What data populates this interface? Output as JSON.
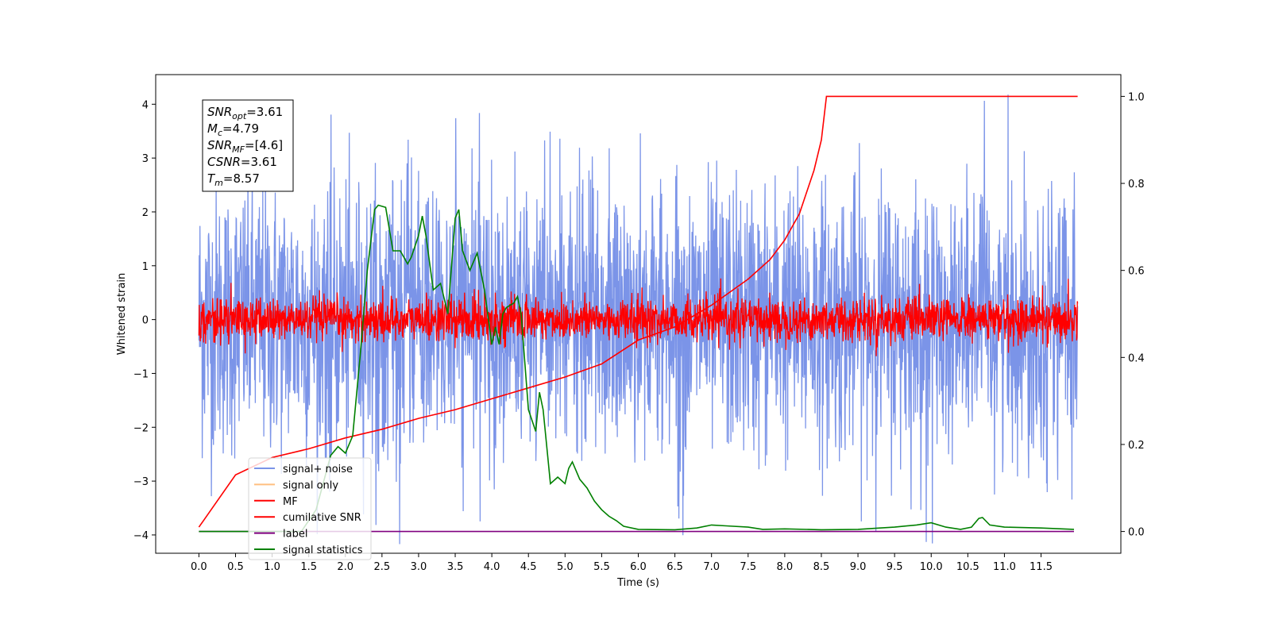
{
  "chart_data": {
    "type": "line",
    "xlabel": "Time (s)",
    "ylabel": "Whitened strain",
    "xlim": [
      -0.59,
      12.59
    ],
    "ylim": [
      -4.34,
      4.55
    ],
    "y2lim": [
      -0.05,
      1.05
    ],
    "xticks": [
      "0.0",
      "0.5",
      "1.0",
      "1.5",
      "2.0",
      "2.5",
      "3.0",
      "3.5",
      "4.0",
      "4.5",
      "5.0",
      "5.5",
      "6.0",
      "6.5",
      "7.0",
      "7.5",
      "8.0",
      "8.5",
      "9.0",
      "9.5",
      "10.0",
      "10.5",
      "11.0",
      "11.5"
    ],
    "yticks": [
      "−4",
      "−3",
      "−2",
      "−1",
      "0",
      "1",
      "2",
      "3",
      "4"
    ],
    "y2ticks": [
      "0.0",
      "0.2",
      "0.4",
      "0.6",
      "0.8",
      "1.0"
    ],
    "grid": false,
    "legend_position": "lower-left",
    "annotation": [
      {
        "base": "SNR",
        "sub": "opt",
        "value": "=3.61"
      },
      {
        "base": "M",
        "sub": "c",
        "value": "=4.79"
      },
      {
        "base": "SNR",
        "sub": "MF",
        "value": "=[4.6]"
      },
      {
        "base": "CSNR",
        "sub": "",
        "value": "=3.61"
      },
      {
        "base": "T",
        "sub": "m",
        "value": "=8.57"
      }
    ],
    "series": [
      {
        "name": "signal+ noise",
        "color": "#7b94e8",
        "axis": "left",
        "kind": "noise",
        "x_range": [
          0.0,
          12.0
        ],
        "amplitude_sd": 1.25,
        "peak_abs": 4.2
      },
      {
        "name": "signal only",
        "color": "#ffbf80",
        "axis": "left",
        "kind": "flat",
        "values": [
          0.0
        ]
      },
      {
        "name": "MF",
        "color": "#ff0000",
        "axis": "left",
        "kind": "noise",
        "x_range": [
          0.0,
          12.0
        ],
        "amplitude_sd": 0.2,
        "peak_abs": 0.85
      },
      {
        "name": "cumilative SNR",
        "color": "#ff0000",
        "axis": "right",
        "kind": "line",
        "x": [
          0.0,
          0.5,
          1.0,
          1.5,
          2.0,
          2.5,
          3.0,
          3.5,
          4.0,
          4.5,
          5.0,
          5.5,
          6.0,
          6.5,
          7.0,
          7.5,
          7.8,
          8.0,
          8.2,
          8.4,
          8.5,
          8.57,
          8.6,
          12.0
        ],
        "values": [
          0.01,
          0.13,
          0.17,
          0.19,
          0.215,
          0.235,
          0.26,
          0.28,
          0.305,
          0.33,
          0.355,
          0.385,
          0.44,
          0.47,
          0.52,
          0.58,
          0.625,
          0.67,
          0.73,
          0.83,
          0.9,
          1.0,
          1.0,
          1.0
        ]
      },
      {
        "name": "label",
        "color": "#800080",
        "axis": "right",
        "kind": "line",
        "x": [
          0.0,
          11.95
        ],
        "values": [
          0.0,
          0.0
        ]
      },
      {
        "name": "signal statistics",
        "color": "#008000",
        "axis": "right",
        "kind": "line",
        "x": [
          0.0,
          0.5,
          1.0,
          1.4,
          1.6,
          1.8,
          1.9,
          2.0,
          2.1,
          2.2,
          2.3,
          2.4,
          2.45,
          2.55,
          2.65,
          2.75,
          2.85,
          2.9,
          3.0,
          3.05,
          3.1,
          3.2,
          3.3,
          3.4,
          3.5,
          3.55,
          3.6,
          3.7,
          3.8,
          3.9,
          4.0,
          4.05,
          4.1,
          4.15,
          4.2,
          4.3,
          4.35,
          4.4,
          4.5,
          4.6,
          4.65,
          4.7,
          4.8,
          4.9,
          5.0,
          5.05,
          5.1,
          5.2,
          5.3,
          5.4,
          5.5,
          5.6,
          5.7,
          5.8,
          6.0,
          6.5,
          6.8,
          7.0,
          7.2,
          7.5,
          7.7,
          8.0,
          8.5,
          9.0,
          9.3,
          9.5,
          9.8,
          10.0,
          10.2,
          10.4,
          10.55,
          10.65,
          10.7,
          10.8,
          11.0,
          11.5,
          11.95
        ],
        "values": [
          0.0,
          0.0,
          0.0,
          0.0,
          0.05,
          0.175,
          0.195,
          0.18,
          0.22,
          0.4,
          0.6,
          0.74,
          0.75,
          0.745,
          0.645,
          0.645,
          0.615,
          0.63,
          0.68,
          0.725,
          0.68,
          0.555,
          0.57,
          0.5,
          0.72,
          0.74,
          0.645,
          0.6,
          0.64,
          0.555,
          0.43,
          0.47,
          0.43,
          0.5,
          0.515,
          0.525,
          0.54,
          0.5,
          0.28,
          0.23,
          0.32,
          0.28,
          0.11,
          0.125,
          0.11,
          0.145,
          0.16,
          0.12,
          0.1,
          0.07,
          0.05,
          0.035,
          0.025,
          0.012,
          0.005,
          0.004,
          0.008,
          0.015,
          0.013,
          0.01,
          0.005,
          0.006,
          0.004,
          0.005,
          0.008,
          0.01,
          0.015,
          0.02,
          0.01,
          0.005,
          0.01,
          0.03,
          0.032,
          0.015,
          0.01,
          0.008,
          0.005
        ]
      }
    ]
  }
}
